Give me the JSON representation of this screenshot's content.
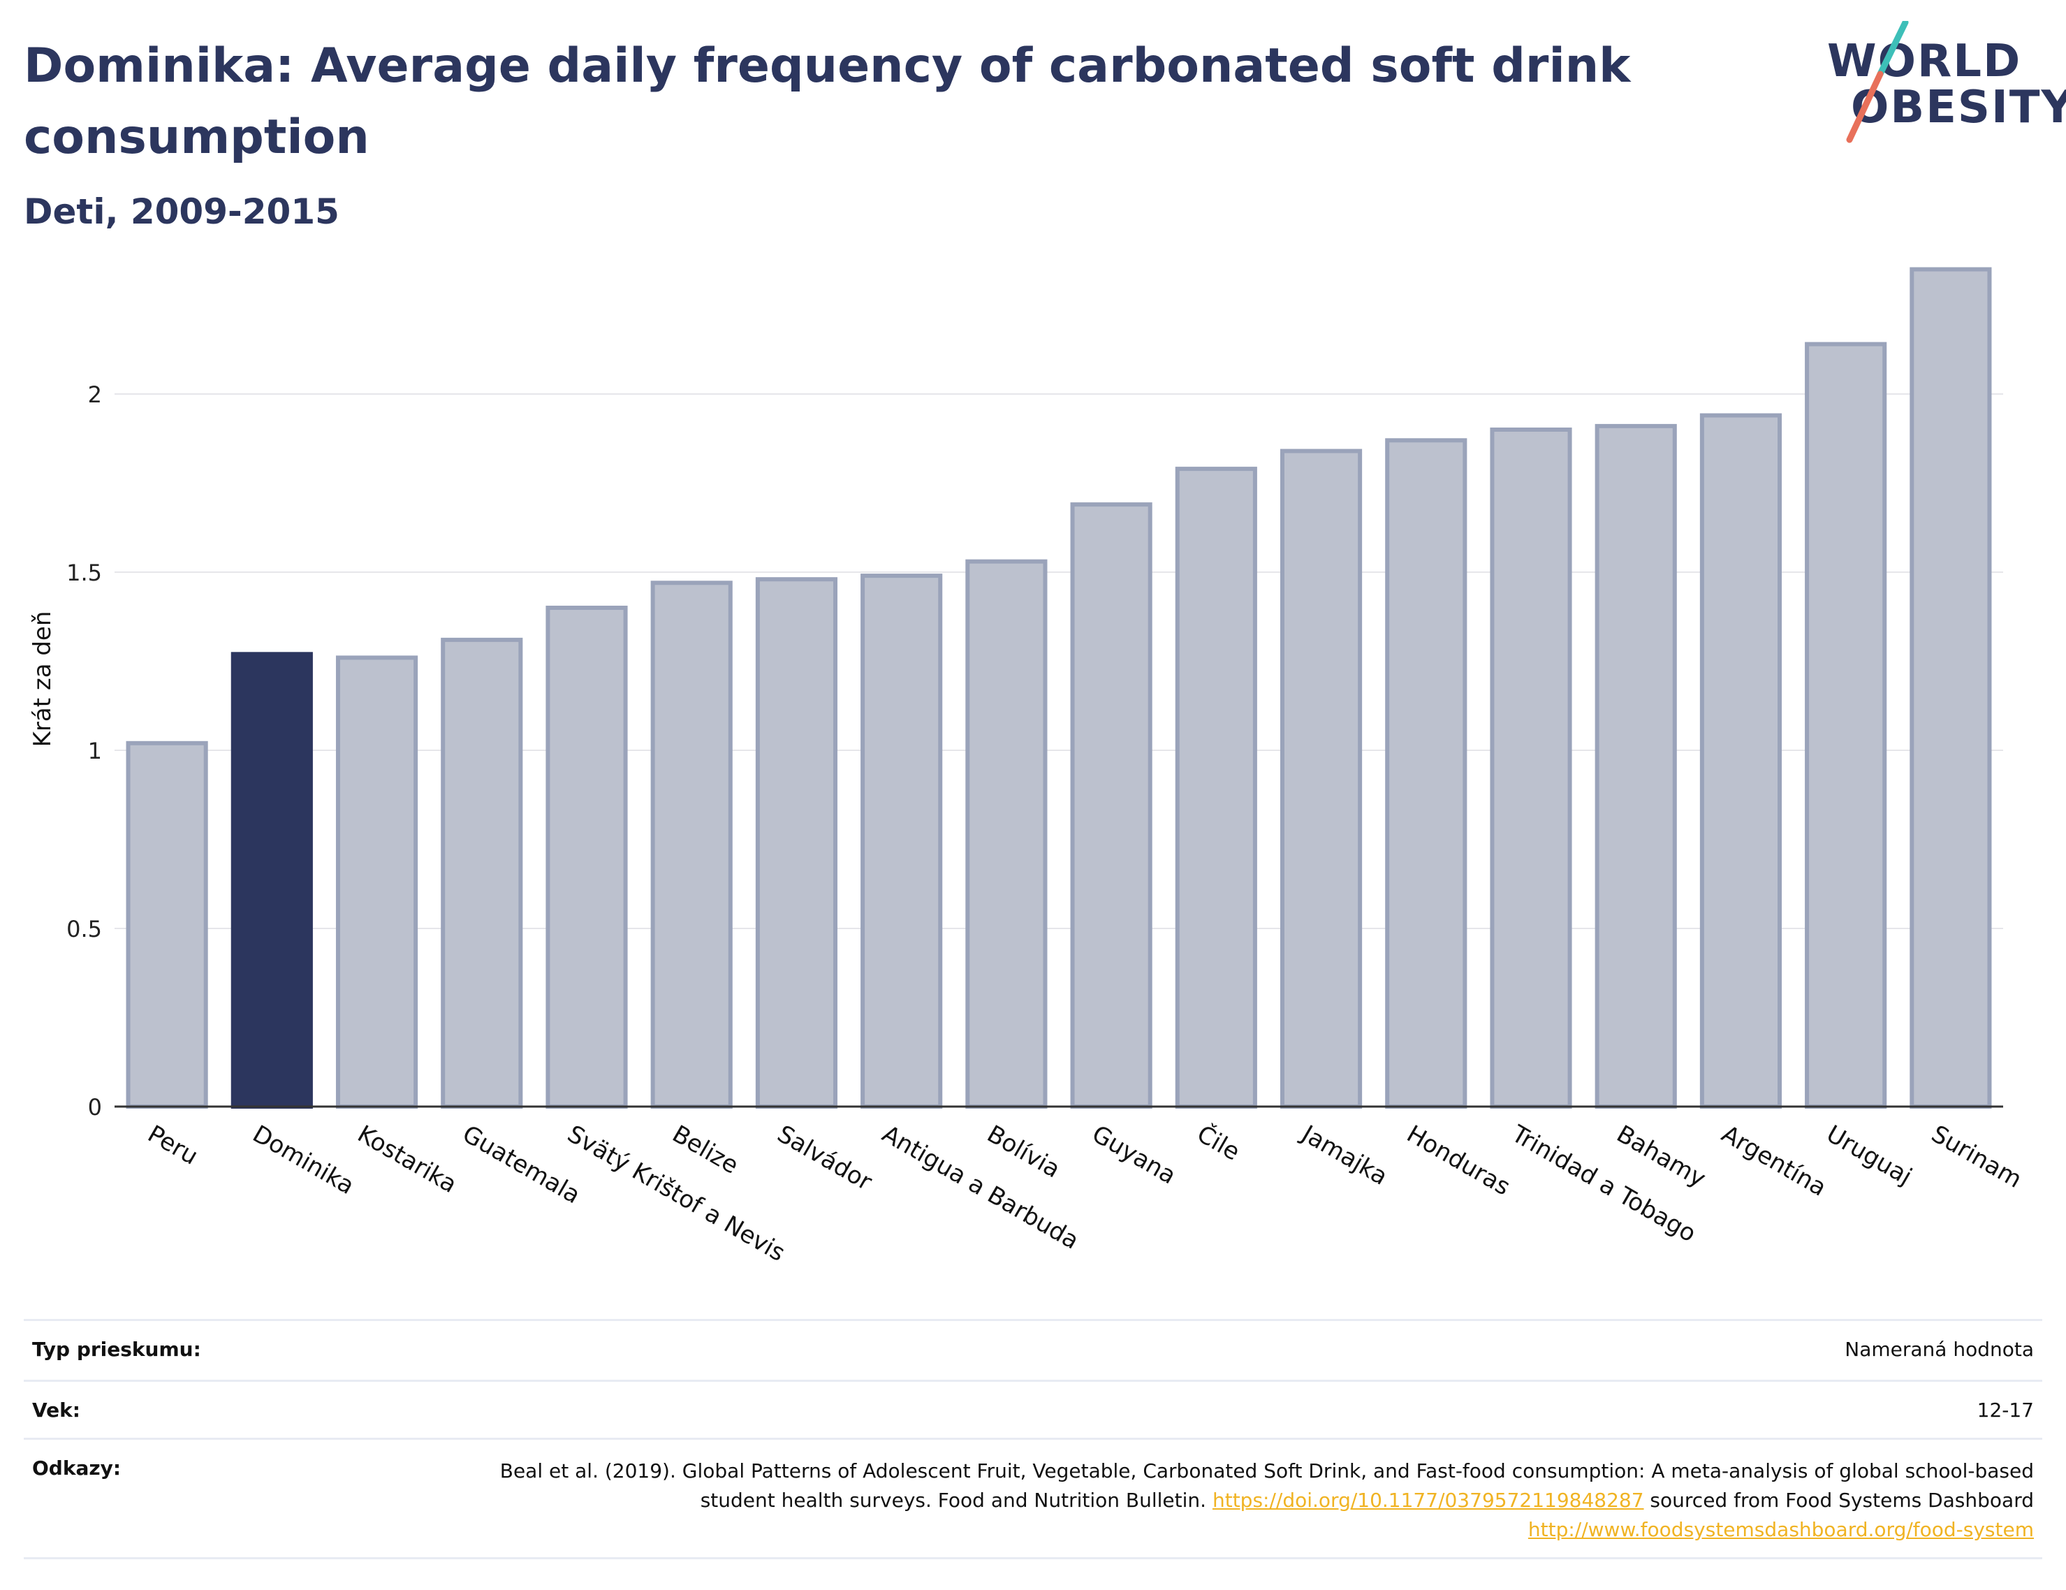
{
  "title": "Dominika: Average daily frequency of carbonated soft drink consumption",
  "subtitle": "Deti, 2009-2015",
  "logo": {
    "line1": "WORLD",
    "line2": "OBESITY"
  },
  "colors": {
    "highlight": "#2c365e",
    "bar": "#bcc1ce",
    "bar_edge": "#9aa3ba",
    "grid": "#e6e6ea",
    "logo_teal": "#3dbfb8",
    "logo_coral": "#e8705a",
    "link": "#f0b323"
  },
  "chart_data": {
    "type": "bar",
    "categories": [
      "Peru",
      "Dominika",
      "Kostarika",
      "Guatemala",
      "Svätý Krištof a Nevis",
      "Belize",
      "Salvádor",
      "Antigua a Barbuda",
      "Bolívia",
      "Guyana",
      "Čile",
      "Jamajka",
      "Honduras",
      "Trinidad a Tobago",
      "Bahamy",
      "Argentína",
      "Uruguaj",
      "Surinam"
    ],
    "values": [
      1.02,
      1.27,
      1.26,
      1.31,
      1.4,
      1.47,
      1.48,
      1.49,
      1.53,
      1.69,
      1.79,
      1.84,
      1.87,
      1.9,
      1.91,
      1.94,
      2.14,
      2.35
    ],
    "highlight": "Dominika",
    "ylabel": "Krát za deň",
    "xlabel": "",
    "ylim": [
      0,
      2.4
    ],
    "yticks": [
      0,
      0.5,
      1,
      1.5,
      2
    ],
    "ytick_labels": [
      "0",
      "0.5",
      "1",
      "1.5",
      "2"
    ],
    "grid": true,
    "legend": "none"
  },
  "meta": {
    "survey_key": "Typ prieskumu:",
    "survey_val": "Nameraná hodnota",
    "age_key": "Vek:",
    "age_val": "12-17",
    "ref_key": "Odkazy:",
    "ref_text1": "Beal et al. (2019). Global Patterns of Adolescent Fruit, Vegetable, Carbonated Soft Drink, and Fast-food consumption: A meta-analysis of global school-based student health surveys. Food and Nutrition Bulletin. ",
    "ref_link1": "https://doi.org/10.1177/0379572119848287",
    "ref_text2": " sourced from Food Systems Dashboard ",
    "ref_link2": "http://www.foodsystemsdashboard.org/food-system"
  }
}
